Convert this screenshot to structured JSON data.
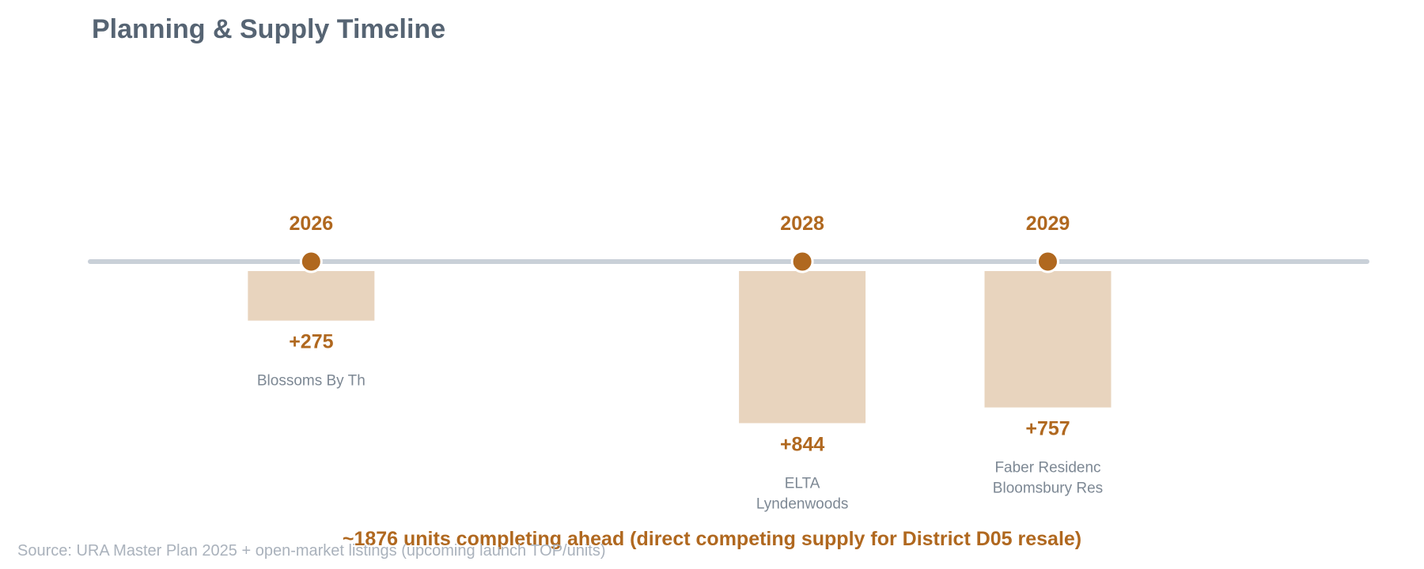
{
  "title": "Planning & Supply Timeline",
  "colors": {
    "title": "#566473",
    "accent": "#b0681f",
    "bar": "#e8d4be",
    "axis": "#c9d0d8",
    "project_label": "#7d8894",
    "source": "#aab2bc"
  },
  "chart_data": {
    "type": "bar",
    "x_axis": "year",
    "xlim": [
      2025.1,
      2030.3
    ],
    "grid": false,
    "legend": "none",
    "events": [
      {
        "year": "2026",
        "units": 275,
        "value_label": "+275",
        "projects": [
          "Blossoms By Th"
        ]
      },
      {
        "year": "2028",
        "units": 844,
        "value_label": "+844",
        "projects": [
          "ELTA",
          "Lyndenwoods"
        ]
      },
      {
        "year": "2029",
        "units": 757,
        "value_label": "+757",
        "projects": [
          "Faber Residenc",
          "Bloomsbury Res"
        ]
      }
    ]
  },
  "summary": "~1876 units completing ahead (direct competing supply for District D05 resale)",
  "source": "Source: URA Master Plan 2025 + open-market listings (upcoming launch TOP/units)"
}
